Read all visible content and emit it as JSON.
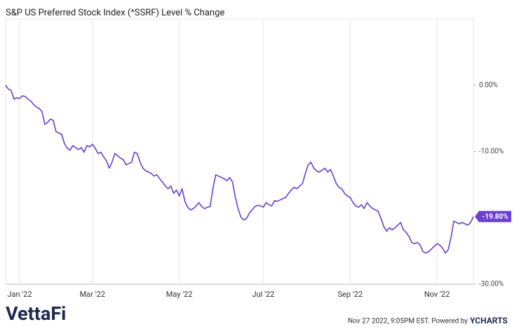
{
  "chart_data": {
    "type": "line",
    "title": "S&P US Preferred Stock Index (^SSRF) Level % Change",
    "series": [
      {
        "name": "S&P US Preferred Stock Index (^SSRF)",
        "color": "#6b3fcf",
        "values": [
          0,
          -0.6,
          -0.8,
          -2.1,
          -1.9,
          -2.0,
          -1.6,
          -1.7,
          -2.1,
          -2.4,
          -2.9,
          -3.3,
          -3.5,
          -4.0,
          -5.9,
          -5.6,
          -5.1,
          -5.3,
          -7.0,
          -7.2,
          -7.4,
          -8.8,
          -9.5,
          -9.8,
          -9.1,
          -9.4,
          -9.7,
          -9.4,
          -10.1,
          -9.1,
          -9.3,
          -8.9,
          -9.5,
          -10.3,
          -10.1,
          -10.8,
          -11.4,
          -12.5,
          -11.6,
          -10.3,
          -10.6,
          -11.0,
          -11.2,
          -12.0,
          -11.8,
          -11.6,
          -10.1,
          -10.3,
          -11.6,
          -12.5,
          -12.9,
          -13.1,
          -13.3,
          -13.7,
          -13.5,
          -14.1,
          -14.6,
          -15.2,
          -15.6,
          -15.2,
          -16.3,
          -15.8,
          -16.7,
          -15.6,
          -17.5,
          -18.4,
          -18.8,
          -18.6,
          -18.2,
          -17.7,
          -18.3,
          -18.6,
          -18.4,
          -18.3,
          -15.6,
          -13.5,
          -13.7,
          -13.9,
          -14.1,
          -14.4,
          -13.9,
          -14.6,
          -16.9,
          -18.6,
          -19.9,
          -20.3,
          -20.1,
          -19.3,
          -18.8,
          -18.3,
          -18.1,
          -18.2,
          -18.4,
          -17.7,
          -18.0,
          -18.2,
          -17.4,
          -17.5,
          -17.3,
          -17.1,
          -16.9,
          -16.3,
          -15.8,
          -15.4,
          -15.6,
          -15.2,
          -14.8,
          -13.3,
          -12.0,
          -11.6,
          -12.5,
          -12.9,
          -13.1,
          -12.8,
          -12.5,
          -13.1,
          -12.7,
          -13.7,
          -14.8,
          -15.4,
          -15.6,
          -16.3,
          -16.7,
          -16.9,
          -17.7,
          -18.2,
          -18.4,
          -18.0,
          -18.6,
          -17.7,
          -18.2,
          -18.6,
          -18.8,
          -19.0,
          -20.1,
          -21.3,
          -22.0,
          -21.5,
          -21.8,
          -21.5,
          -21.1,
          -20.7,
          -21.8,
          -22.2,
          -22.8,
          -23.7,
          -23.9,
          -23.7,
          -24.1,
          -25.1,
          -25.3,
          -25.1,
          -24.7,
          -24.3,
          -23.9,
          -24.1,
          -24.6,
          -25.3,
          -24.8,
          -23.0,
          -20.5,
          -20.7,
          -20.9,
          -20.7,
          -20.9,
          -21.1,
          -20.7,
          -19.8
        ],
        "end_label": "-19.80%"
      }
    ],
    "xticks": [
      {
        "value": 5,
        "label": "Jan '22"
      },
      {
        "value": 31,
        "label": "Mar '22"
      },
      {
        "value": 62,
        "label": "May '22"
      },
      {
        "value": 92,
        "label": "Jul '22"
      },
      {
        "value": 123,
        "label": "Sep '22"
      },
      {
        "value": 154,
        "label": "Nov '22"
      }
    ],
    "ylim": [
      -30,
      10
    ],
    "yticks": [
      {
        "value": 0,
        "label": "0.00%"
      },
      {
        "value": -10,
        "label": "-10.00%"
      },
      {
        "value": -30,
        "label": "-30.00%"
      }
    ],
    "grid": "x",
    "footer": {
      "brand": "VettaFi",
      "timestamp": "Nov 27 2022, 9:05PM EST. Powered by",
      "provider": "YCHARTS"
    }
  }
}
